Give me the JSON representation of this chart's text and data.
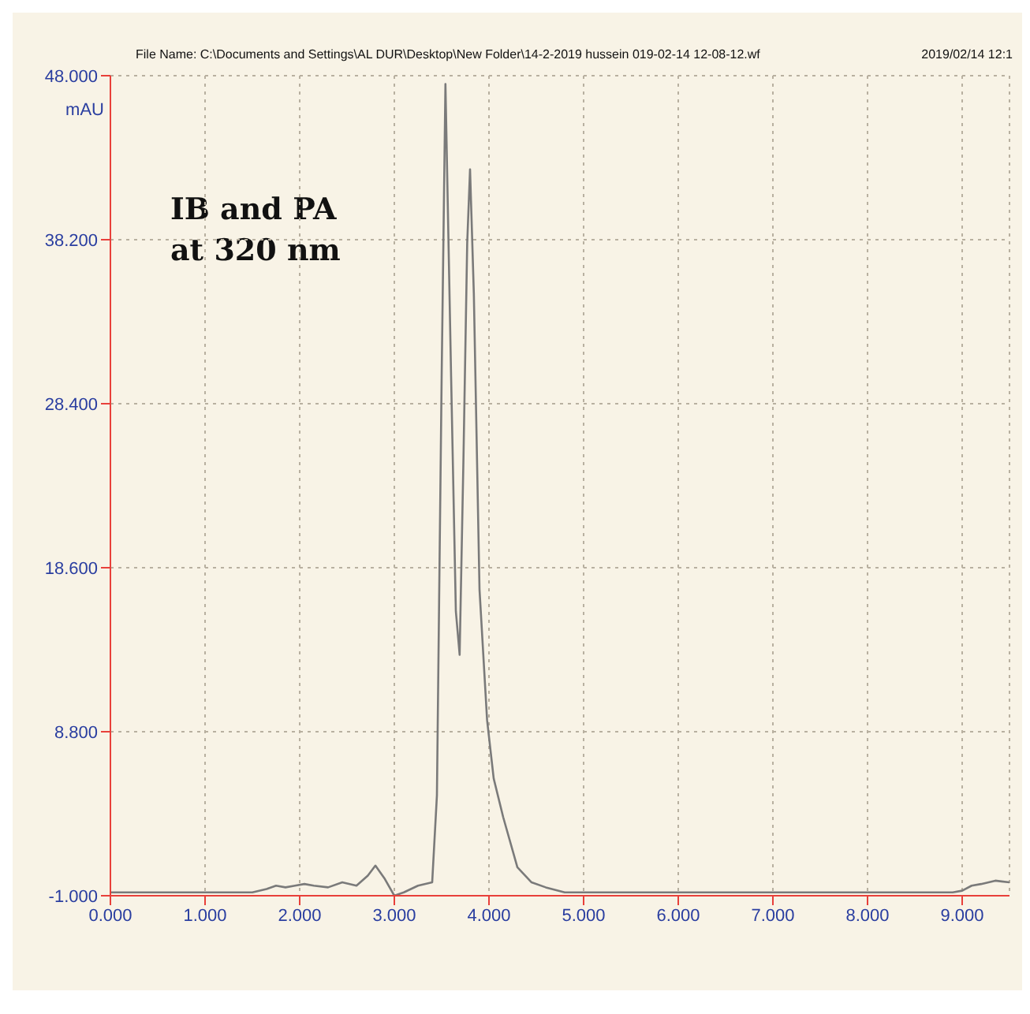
{
  "chart_data": {
    "type": "line",
    "ylabel": "mAU",
    "annotations": [
      "File Name: C:\\Documents and Settings\\AL DUR\\Desktop\\New Folder\\14-2-2019 hussein 019-02-14 12-08-12.wf",
      "2019/02/14 12:1",
      "IB and PA\nat 320 nm"
    ],
    "x": [
      0,
      0.5,
      1.0,
      1.5,
      1.65,
      1.75,
      1.85,
      1.95,
      2.05,
      2.15,
      2.3,
      2.45,
      2.6,
      2.72,
      2.8,
      2.9,
      3.0,
      3.1,
      3.25,
      3.4,
      3.45,
      3.5,
      3.54,
      3.6,
      3.65,
      3.69,
      3.73,
      3.77,
      3.8,
      3.84,
      3.9,
      3.98,
      4.05,
      4.15,
      4.3,
      4.45,
      4.6,
      4.8,
      5.5,
      6.5,
      7.5,
      8.5,
      8.9,
      9.0,
      9.1,
      9.2,
      9.35,
      9.5
    ],
    "series": [
      {
        "color": "#7a7a7a",
        "values": [
          -0.8,
          -0.8,
          -0.8,
          -0.8,
          -0.6,
          -0.4,
          -0.5,
          -0.4,
          -0.3,
          -0.4,
          -0.5,
          -0.2,
          -0.4,
          0.2,
          0.8,
          0.0,
          -1.0,
          -0.8,
          -0.4,
          -0.2,
          5,
          30,
          47.5,
          30,
          16,
          13.4,
          25,
          38,
          42.4,
          35,
          17.3,
          9.5,
          6,
          3.7,
          0.7,
          -0.2,
          -0.5,
          -0.8,
          -0.8,
          -0.8,
          -0.8,
          -0.8,
          -0.8,
          -0.7,
          -0.4,
          -0.3,
          -0.1,
          -0.2
        ]
      }
    ],
    "xlim": [
      0,
      9.5
    ],
    "xticks": [
      {
        "value": 0,
        "label": "0.000"
      },
      {
        "value": 1,
        "label": "1.000"
      },
      {
        "value": 2,
        "label": "2.000"
      },
      {
        "value": 3,
        "label": "3.000"
      },
      {
        "value": 4,
        "label": "4.000"
      },
      {
        "value": 5,
        "label": "5.000"
      },
      {
        "value": 6,
        "label": "6.000"
      },
      {
        "value": 7,
        "label": "7.000"
      },
      {
        "value": 8,
        "label": "8.000"
      },
      {
        "value": 9,
        "label": "9.000"
      }
    ],
    "ylim": [
      -1,
      48
    ],
    "yticks": [
      {
        "value": -1,
        "label": "-1.000"
      },
      {
        "value": 8.8,
        "label": "8.800"
      },
      {
        "value": 18.6,
        "label": "18.600"
      },
      {
        "value": 28.4,
        "label": "28.400"
      },
      {
        "value": 38.2,
        "label": "38.200"
      },
      {
        "value": 48,
        "label": "48.000"
      }
    ],
    "grid": true,
    "line_style": "solid"
  }
}
